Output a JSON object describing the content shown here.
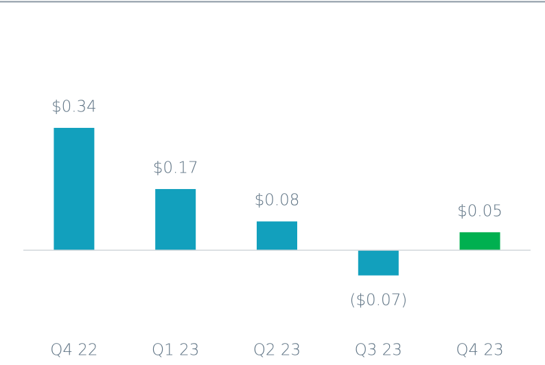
{
  "chart_data": {
    "type": "bar",
    "categories": [
      "Q4 22",
      "Q1 23",
      "Q2 23",
      "Q3 23",
      "Q4 23"
    ],
    "values": [
      0.34,
      0.17,
      0.08,
      -0.07,
      0.05
    ],
    "value_labels": [
      "$0.34",
      "$0.17",
      "$0.08",
      "($0.07)",
      "$0.05"
    ],
    "colors": [
      "#12a0bd",
      "#12a0bd",
      "#12a0bd",
      "#12a0bd",
      "#00b050"
    ],
    "ylim": [
      -0.1,
      0.4
    ]
  }
}
